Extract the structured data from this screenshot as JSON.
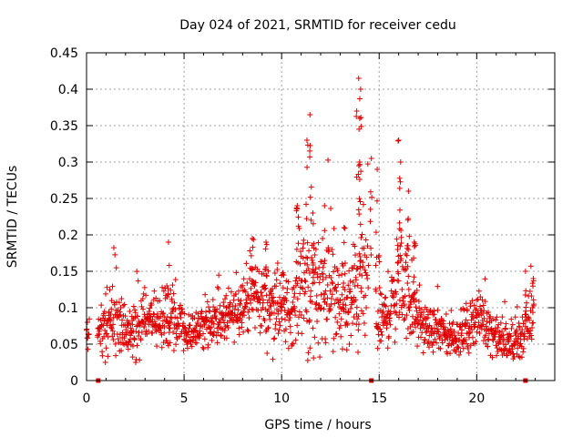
{
  "chart_data": {
    "type": "scatter",
    "title": "Day 024 of 2021, SRMTID for receiver cedu",
    "xlabel": "GPS time / hours",
    "ylabel": "SRMTID / TECUs",
    "xlim": [
      0,
      24
    ],
    "ylim": [
      0,
      0.45
    ],
    "xticks": [
      0,
      5,
      10,
      15,
      20
    ],
    "xtick_labels": [
      "0",
      "5",
      "10",
      "15",
      "20"
    ],
    "yticks": [
      0,
      0.05,
      0.1,
      0.15,
      0.2,
      0.25,
      0.3,
      0.35,
      0.4,
      0.45
    ],
    "ytick_labels": [
      "0",
      "0.05",
      "0.1",
      "0.15",
      "0.2",
      "0.25",
      "0.3",
      "0.35",
      "0.4",
      "0.45"
    ],
    "grid": true,
    "marker": "+",
    "color": "#e00000",
    "series": [
      {
        "name": "SRMTID",
        "profile_hours": [
          0.0,
          0.5,
          1.0,
          1.5,
          2.0,
          2.5,
          3.0,
          3.5,
          4.0,
          4.5,
          5.0,
          5.5,
          6.0,
          6.5,
          7.0,
          7.5,
          8.0,
          8.5,
          9.0,
          9.5,
          10.0,
          10.5,
          11.0,
          11.5,
          12.0,
          12.5,
          13.0,
          13.5,
          14.0,
          14.5,
          15.0,
          15.5,
          16.0,
          16.5,
          17.0,
          17.5,
          18.0,
          18.5,
          19.0,
          19.5,
          20.0,
          20.5,
          21.0,
          21.5,
          22.0,
          22.5,
          23.0
        ],
        "profile_median": [
          0.065,
          0.06,
          0.08,
          0.09,
          0.065,
          0.07,
          0.09,
          0.085,
          0.08,
          0.09,
          0.065,
          0.07,
          0.08,
          0.085,
          0.085,
          0.09,
          0.11,
          0.12,
          0.11,
          0.1,
          0.1,
          0.09,
          0.15,
          0.12,
          0.13,
          0.12,
          0.1,
          0.1,
          0.14,
          0.13,
          0.08,
          0.09,
          0.14,
          0.12,
          0.08,
          0.07,
          0.07,
          0.06,
          0.06,
          0.07,
          0.09,
          0.08,
          0.06,
          0.05,
          0.05,
          0.07,
          0.1
        ],
        "profile_spread": [
          0.015,
          0.015,
          0.04,
          0.04,
          0.02,
          0.03,
          0.025,
          0.03,
          0.03,
          0.04,
          0.02,
          0.02,
          0.025,
          0.025,
          0.025,
          0.025,
          0.03,
          0.04,
          0.04,
          0.04,
          0.04,
          0.03,
          0.06,
          0.08,
          0.06,
          0.05,
          0.04,
          0.05,
          0.08,
          0.07,
          0.03,
          0.03,
          0.06,
          0.05,
          0.025,
          0.02,
          0.02,
          0.02,
          0.02,
          0.025,
          0.025,
          0.025,
          0.02,
          0.02,
          0.02,
          0.03,
          0.03
        ],
        "peaks": [
          {
            "x": 11.45,
            "y": 0.365
          },
          {
            "x": 11.3,
            "y": 0.33
          },
          {
            "x": 13.95,
            "y": 0.415
          },
          {
            "x": 14.05,
            "y": 0.4
          },
          {
            "x": 13.85,
            "y": 0.37
          },
          {
            "x": 14.0,
            "y": 0.3
          },
          {
            "x": 16.0,
            "y": 0.33
          },
          {
            "x": 16.1,
            "y": 0.3
          },
          {
            "x": 16.5,
            "y": 0.26
          },
          {
            "x": 14.6,
            "y": 0.305
          },
          {
            "x": 14.9,
            "y": 0.29
          },
          {
            "x": 12.2,
            "y": 0.24
          },
          {
            "x": 11.6,
            "y": 0.23
          },
          {
            "x": 10.8,
            "y": 0.24
          },
          {
            "x": 4.2,
            "y": 0.19
          },
          {
            "x": 8.5,
            "y": 0.195
          },
          {
            "x": 9.2,
            "y": 0.19
          },
          {
            "x": 13.2,
            "y": 0.21
          },
          {
            "x": 16.8,
            "y": 0.19
          },
          {
            "x": 22.5,
            "y": 0.15
          },
          {
            "x": 22.9,
            "y": 0.14
          }
        ],
        "markers_at_zero": [
          0.6,
          14.6,
          22.5
        ]
      }
    ]
  }
}
